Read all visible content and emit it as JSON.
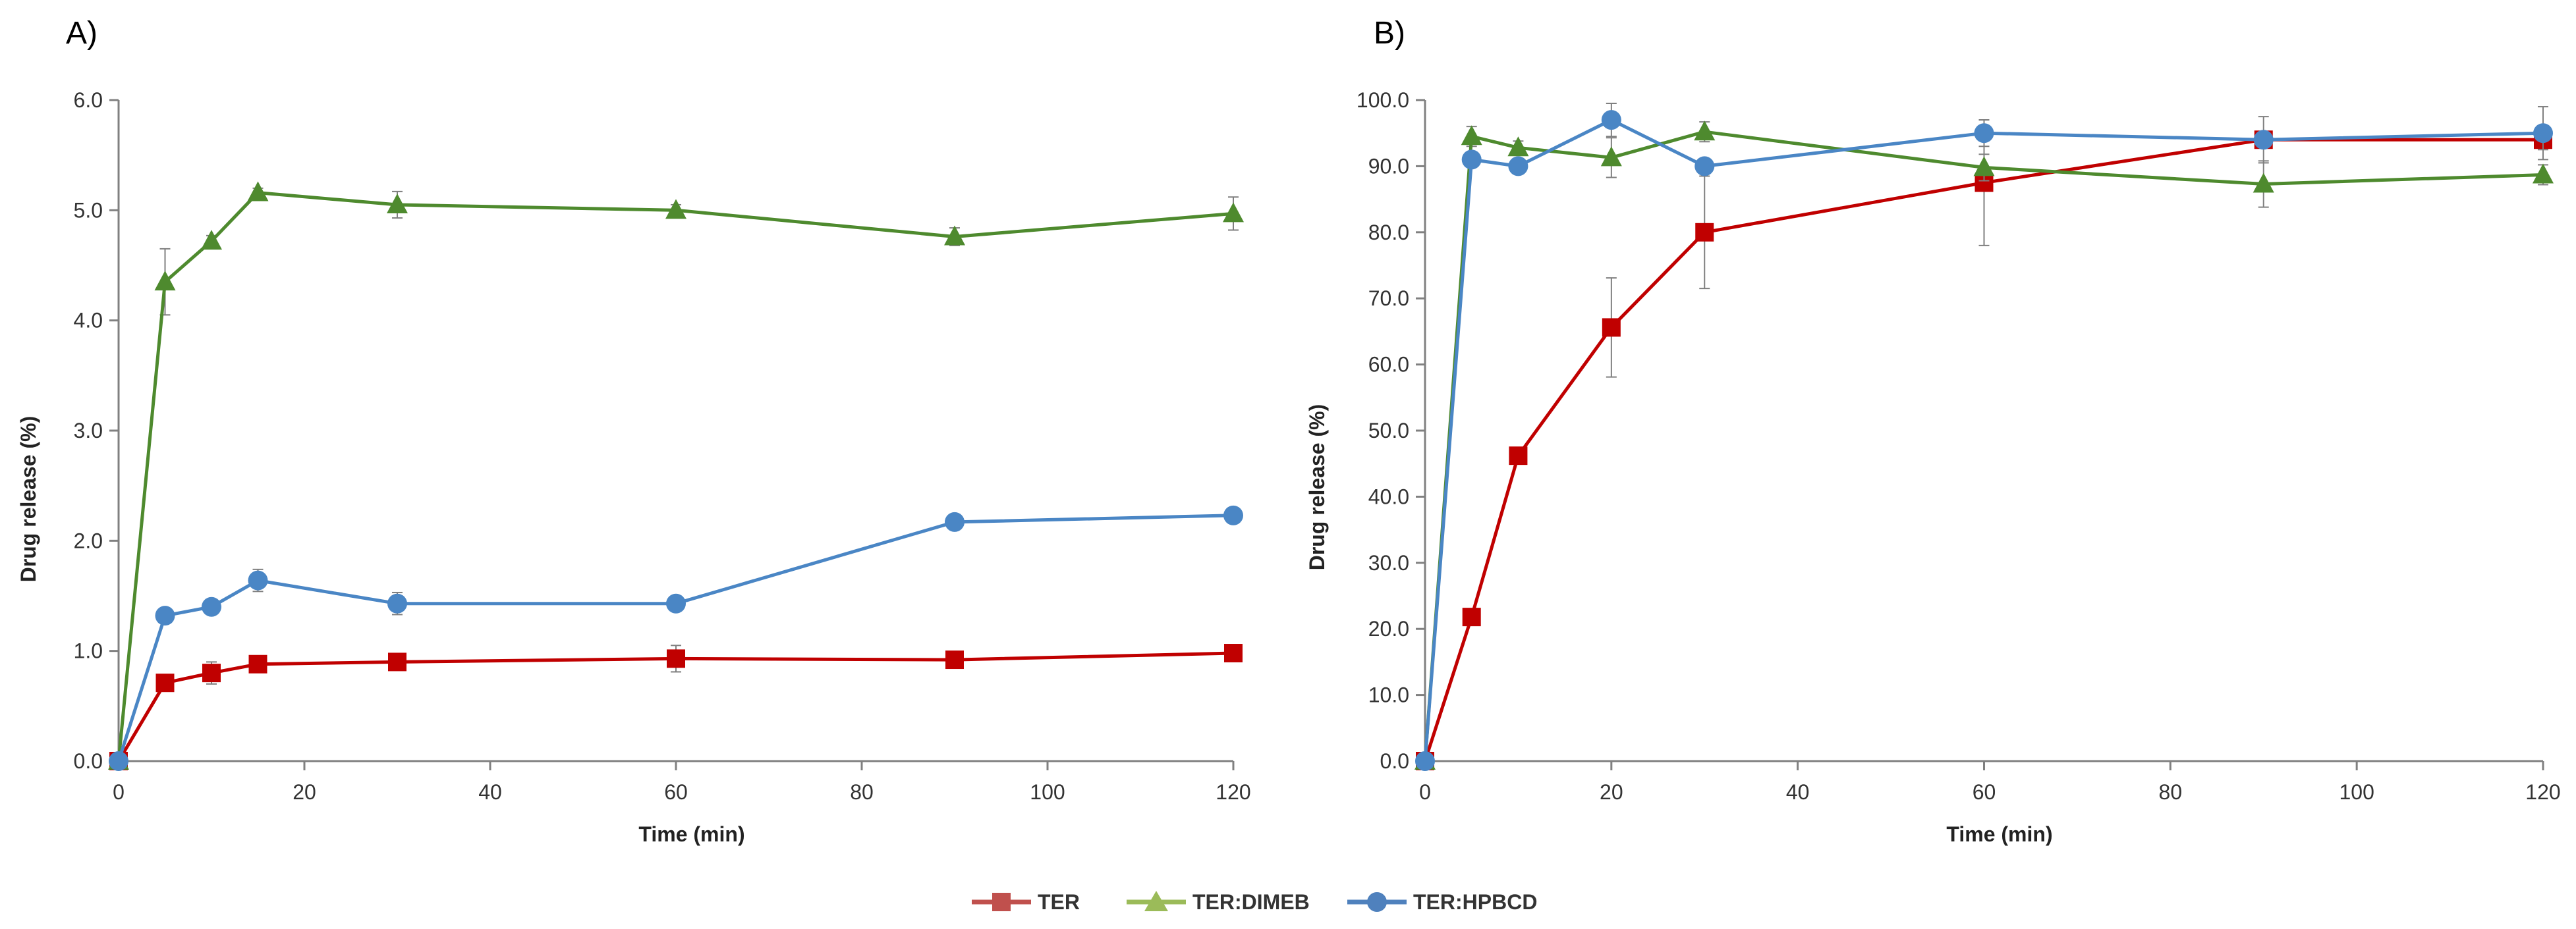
{
  "chart_data": [
    {
      "type": "line",
      "panel_label": "A)",
      "xlabel": "Time (min)",
      "ylabel": "Drug release (%)",
      "xlim": [
        0,
        120
      ],
      "ylim": [
        0,
        6
      ],
      "x_ticks": [
        "0",
        "20",
        "40",
        "60",
        "80",
        "100",
        "120"
      ],
      "y_ticks": [
        "0.0",
        "1.0",
        "2.0",
        "3.0",
        "4.0",
        "5.0",
        "6.0"
      ],
      "grid": false,
      "series": [
        {
          "name": "TER",
          "color": "#C00000",
          "marker": "square",
          "x": [
            0,
            5,
            10,
            15,
            30,
            60,
            90,
            120
          ],
          "y": [
            0,
            0.71,
            0.8,
            0.88,
            0.9,
            0.93,
            0.92,
            0.98
          ],
          "err": [
            0,
            0.05,
            0.1,
            0.05,
            0.03,
            0.12,
            0.03,
            0.03
          ]
        },
        {
          "name": "TER:DIMEB",
          "color": "#4E8A2E",
          "marker": "triangle",
          "x": [
            0,
            5,
            10,
            15,
            30,
            60,
            90,
            120
          ],
          "y": [
            0,
            4.35,
            4.72,
            5.16,
            5.05,
            5.0,
            4.76,
            4.97
          ],
          "err": [
            0,
            0.3,
            0.05,
            0.04,
            0.12,
            0.05,
            0.08,
            0.15
          ]
        },
        {
          "name": "TER:HPBCD",
          "color": "#4A86C5",
          "marker": "circle",
          "x": [
            0,
            5,
            10,
            15,
            30,
            60,
            90,
            120
          ],
          "y": [
            0,
            1.32,
            1.4,
            1.64,
            1.43,
            1.43,
            2.17,
            2.23
          ],
          "err": [
            0,
            0.03,
            0.03,
            0.1,
            0.1,
            0.03,
            0.03,
            0.07
          ]
        }
      ]
    },
    {
      "type": "line",
      "panel_label": "B)",
      "xlabel": "Time (min)",
      "ylabel": "Drug release (%)",
      "xlim": [
        0,
        120
      ],
      "ylim": [
        0,
        100
      ],
      "x_ticks": [
        "0",
        "20",
        "40",
        "60",
        "80",
        "100",
        "120"
      ],
      "y_ticks": [
        "0.0",
        "10.0",
        "20.0",
        "30.0",
        "40.0",
        "50.0",
        "60.0",
        "70.0",
        "80.0",
        "90.0",
        "100.0"
      ],
      "grid": false,
      "series": [
        {
          "name": "TER",
          "color": "#C00000",
          "marker": "square",
          "x": [
            0,
            5,
            10,
            20,
            30,
            60,
            90,
            120
          ],
          "y": [
            0,
            21.8,
            46.2,
            65.6,
            80.0,
            87.5,
            94.0,
            94.0
          ],
          "err": [
            0,
            1.0,
            1.0,
            7.5,
            8.5,
            9.5,
            3.5,
            1.5
          ]
        },
        {
          "name": "TER:DIMEB",
          "color": "#4E8A2E",
          "marker": "triangle",
          "x": [
            0,
            5,
            10,
            20,
            30,
            60,
            90,
            120
          ],
          "y": [
            0,
            94.5,
            92.8,
            91.3,
            95.2,
            89.8,
            87.3,
            88.7
          ],
          "err": [
            0,
            1.5,
            1.0,
            3.0,
            1.5,
            2.0,
            3.5,
            1.5
          ]
        },
        {
          "name": "TER:HPBCD",
          "color": "#4A86C5",
          "marker": "circle",
          "x": [
            0,
            5,
            10,
            20,
            30,
            60,
            90,
            120
          ],
          "y": [
            0,
            91.0,
            90.0,
            97.0,
            90.0,
            95.0,
            94.0,
            95.0
          ],
          "err": [
            0,
            1.0,
            1.0,
            2.5,
            1.0,
            2.0,
            1.0,
            4.0
          ]
        }
      ]
    }
  ],
  "legend": {
    "position": "bottom-center",
    "items": [
      {
        "label": "TER",
        "color": "#C0504D",
        "marker": "square"
      },
      {
        "label": "TER:DIMEB",
        "color": "#9BBB59",
        "marker": "triangle"
      },
      {
        "label": "TER:HPBCD",
        "color": "#4F81BD",
        "marker": "circle"
      }
    ]
  }
}
